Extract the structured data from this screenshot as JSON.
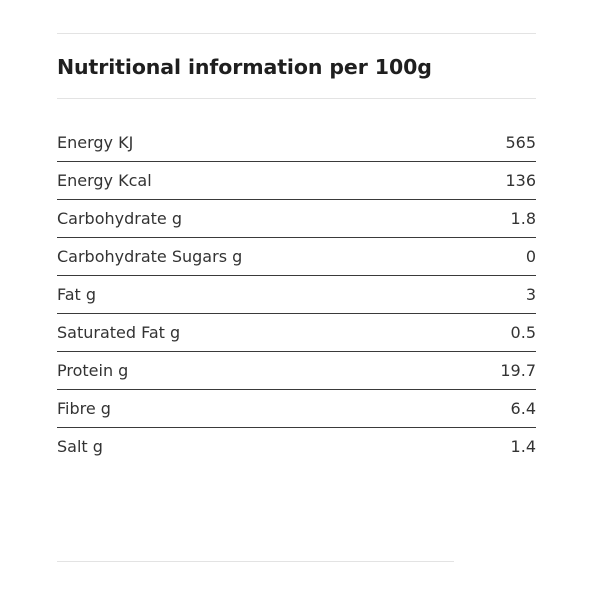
{
  "heading": "Nutritional information per 100g",
  "rows": [
    {
      "label": "Energy KJ",
      "value": "565"
    },
    {
      "label": "Energy Kcal",
      "value": "136"
    },
    {
      "label": "Carbohydrate g",
      "value": "1.8"
    },
    {
      "label": "Carbohydrate Sugars g",
      "value": "0"
    },
    {
      "label": "Fat g",
      "value": "3"
    },
    {
      "label": "Saturated Fat g",
      "value": "0.5"
    },
    {
      "label": "Protein g",
      "value": "19.7"
    },
    {
      "label": "Fibre g",
      "value": "6.4"
    },
    {
      "label": "Salt g",
      "value": "1.4"
    }
  ]
}
